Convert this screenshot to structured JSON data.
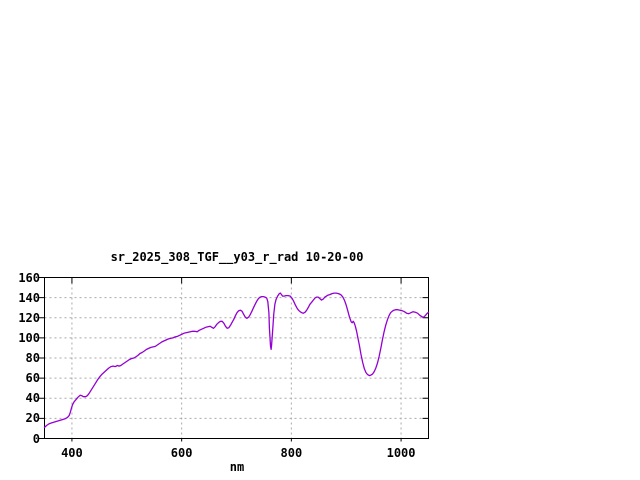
{
  "chart_data": {
    "type": "line",
    "title": "sr_2025_308_TGF__y03_r_rad 10-20-00",
    "xlabel": "nm",
    "ylabel": "",
    "xlim": [
      350,
      1050
    ],
    "ylim": [
      0,
      160
    ],
    "x_ticks": [
      400,
      600,
      800,
      1000
    ],
    "y_ticks": [
      0,
      20,
      40,
      60,
      80,
      100,
      120,
      140,
      160
    ],
    "grid": true,
    "legend": "none",
    "line_color": "#9400D3",
    "grid_color": "#A9A9A9",
    "border_color": "#000000",
    "background_color": "#FFFFFF",
    "series": [
      {
        "name": "sr_2025_308_TGF__y03_r_rad",
        "x": [
          350,
          354,
          358,
          363,
          369,
          375,
          381,
          387,
          392,
          395,
          397,
          399,
          401,
          404,
          407,
          411,
          415,
          418,
          421,
          425,
          428,
          431,
          435,
          439,
          443,
          447,
          451,
          455,
          459,
          463,
          467,
          471,
          475,
          479,
          483,
          486,
          489,
          493,
          497,
          501,
          505,
          509,
          513,
          516,
          520,
          524,
          528,
          532,
          536,
          540,
          544,
          548,
          552,
          556,
          560,
          564,
          568,
          572,
          576,
          580,
          584,
          588,
          592,
          596,
          600,
          604,
          608,
          612,
          616,
          620,
          624,
          628,
          632,
          636,
          640,
          644,
          648,
          652,
          655,
          658,
          661,
          664,
          668,
          671,
          674,
          677,
          680,
          683,
          686,
          689,
          692,
          695,
          698,
          701,
          704,
          707,
          710,
          713,
          716,
          719,
          722,
          725,
          728,
          731,
          734,
          737,
          740,
          743,
          746,
          749,
          752,
          755,
          757,
          759,
          760,
          762,
          763,
          764,
          766,
          768,
          770,
          772,
          775,
          778,
          780,
          782,
          784,
          787,
          790,
          794,
          798,
          801,
          804,
          807,
          810,
          813,
          816,
          819,
          822,
          825,
          828,
          831,
          834,
          837,
          840,
          843,
          846,
          849,
          852,
          855,
          858,
          861,
          864,
          867,
          870,
          874,
          878,
          882,
          886,
          890,
          894,
          897,
          900,
          903,
          906,
          909,
          911,
          913,
          915,
          917,
          919,
          921,
          924,
          927,
          930,
          933,
          936,
          939,
          942,
          945,
          948,
          951,
          954,
          957,
          960,
          963,
          966,
          969,
          972,
          975,
          978,
          981,
          984,
          987,
          990,
          994,
          998,
          1002,
          1006,
          1010,
          1014,
          1018,
          1022,
          1026,
          1030,
          1034,
          1038,
          1041,
          1044,
          1047,
          1050
        ],
        "y": [
          11,
          13,
          14.5,
          15.5,
          16.5,
          17.5,
          18.5,
          19.5,
          21,
          23,
          26,
          30,
          33.5,
          36.5,
          38.5,
          41,
          43,
          42.5,
          41.5,
          41.5,
          42.5,
          44.5,
          48,
          51.5,
          55,
          58.5,
          61.5,
          64,
          66,
          68,
          70,
          71.5,
          72,
          71.5,
          72.5,
          72,
          72.5,
          74,
          75.5,
          77,
          78.5,
          79.5,
          80,
          81,
          82.5,
          84.5,
          85.5,
          87,
          88.5,
          89.5,
          90.5,
          91,
          91.5,
          93,
          94.5,
          96,
          97,
          98,
          99,
          99.5,
          100,
          101,
          101.5,
          102.5,
          103.5,
          104.5,
          105,
          105.5,
          106,
          106.5,
          106.5,
          106,
          107.5,
          108.5,
          109.5,
          110.5,
          111,
          111.5,
          110.5,
          109.5,
          111,
          113.5,
          115.5,
          116.5,
          116.5,
          114.5,
          111.5,
          109.5,
          110,
          112.5,
          115.5,
          118.5,
          122,
          125,
          127,
          127.5,
          126.5,
          123.5,
          120.5,
          119.5,
          120.5,
          123,
          126.5,
          130,
          133.5,
          136.5,
          139,
          140.5,
          141,
          141,
          140.5,
          139.5,
          136,
          125,
          110,
          92,
          88.5,
          93,
          108,
          124,
          133.5,
          138,
          141.5,
          144,
          144.5,
          143,
          141.5,
          141.5,
          142,
          142,
          141.5,
          139.5,
          136.5,
          133,
          130,
          127.5,
          126,
          125,
          124.5,
          125.5,
          127.5,
          130.5,
          133.5,
          135.5,
          137.5,
          139.5,
          140.5,
          140.5,
          139,
          137.5,
          138.5,
          140.5,
          141.5,
          142.5,
          143,
          144,
          144.5,
          144.5,
          144,
          143,
          140.5,
          137,
          132.5,
          126.5,
          120.5,
          116,
          115,
          116.5,
          114.5,
          111,
          106.5,
          101,
          92.5,
          83.5,
          75.5,
          69.5,
          65.5,
          63.5,
          62.5,
          63,
          64,
          66.5,
          70,
          75,
          81.5,
          89.5,
          98,
          106,
          112.5,
          118,
          122,
          125,
          126.5,
          127.5,
          128,
          128,
          127.5,
          127,
          126,
          124.5,
          124,
          125,
          126,
          125.5,
          124.5,
          122.5,
          121,
          120.5,
          122,
          124,
          125.5
        ]
      }
    ]
  }
}
